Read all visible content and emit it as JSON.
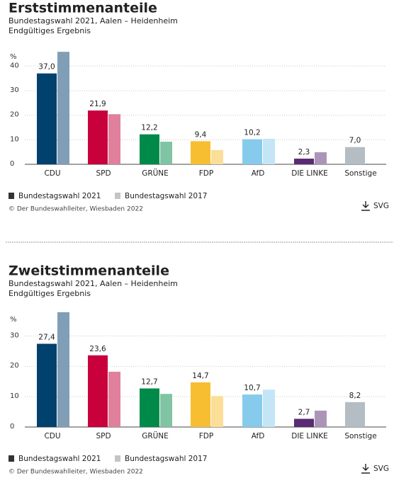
{
  "chart_data": [
    {
      "type": "bar",
      "title": "Erststimmenanteile",
      "subtitle": [
        "Bundestagswahl 2021, Aalen – Heidenheim",
        "Endgültiges Ergebnis"
      ],
      "y_label": "%",
      "categories": [
        "CDU",
        "SPD",
        "GRÜNE",
        "FDP",
        "AfD",
        "DIE LINKE",
        "Sonstige"
      ],
      "series": [
        {
          "name": "Bundestagswahl 2021",
          "color": "#333333",
          "bar_colors": [
            "#00416e",
            "#c8003c",
            "#008a4a",
            "#f7be32",
            "#87cbec",
            "#5a2a73",
            "#b4bcc4"
          ],
          "values": [
            37.0,
            21.9,
            12.2,
            9.4,
            10.2,
            2.3,
            7.0
          ],
          "value_labels": [
            "37,0",
            "21,9",
            "12,2",
            "9,4",
            "10,2",
            "2,3",
            "7,0"
          ]
        },
        {
          "name": "Bundestagswahl 2017",
          "color": "#c4c4c4",
          "bar_colors": [
            "#809fb6",
            "#e0809d",
            "#80c4a4",
            "#fbde98",
            "#c3e5f6",
            "#ac94b9",
            "#d9dde1"
          ],
          "values": [
            45.8,
            20.4,
            9.2,
            5.8,
            10.4,
            4.9,
            null
          ]
        }
      ],
      "ylim": [
        0,
        47
      ],
      "yticks": [
        0,
        10,
        20,
        30,
        40
      ],
      "grid": true,
      "source": "© Der Bundeswahlleiter, Wiesbaden 2022",
      "download_label": "SVG"
    },
    {
      "type": "bar",
      "title": "Zweitstimmenanteile",
      "subtitle": [
        "Bundestagswahl 2021, Aalen – Heidenheim",
        "Endgültiges Ergebnis"
      ],
      "y_label": "%",
      "categories": [
        "CDU",
        "SPD",
        "GRÜNE",
        "FDP",
        "AfD",
        "DIE LINKE",
        "Sonstige"
      ],
      "series": [
        {
          "name": "Bundestagswahl 2021",
          "color": "#333333",
          "bar_colors": [
            "#00416e",
            "#c8003c",
            "#008a4a",
            "#f7be32",
            "#87cbec",
            "#5a2a73",
            "#b4bcc4"
          ],
          "values": [
            27.4,
            23.6,
            12.7,
            14.7,
            10.7,
            2.7,
            8.2
          ],
          "value_labels": [
            "27,4",
            "23,6",
            "12,7",
            "14,7",
            "10,7",
            "2,7",
            "8,2"
          ]
        },
        {
          "name": "Bundestagswahl 2017",
          "color": "#c4c4c4",
          "bar_colors": [
            "#809fb6",
            "#e0809d",
            "#80c4a4",
            "#fbde98",
            "#c3e5f6",
            "#ac94b9",
            "#d9dde1"
          ],
          "values": [
            37.8,
            18.2,
            10.9,
            10.2,
            12.3,
            5.4,
            null
          ]
        }
      ],
      "ylim": [
        0,
        38
      ],
      "yticks": [
        0,
        10,
        20,
        30
      ],
      "grid": true,
      "source": "© Der Bundeswahlleiter, Wiesbaden 2022",
      "download_label": "SVG"
    }
  ]
}
